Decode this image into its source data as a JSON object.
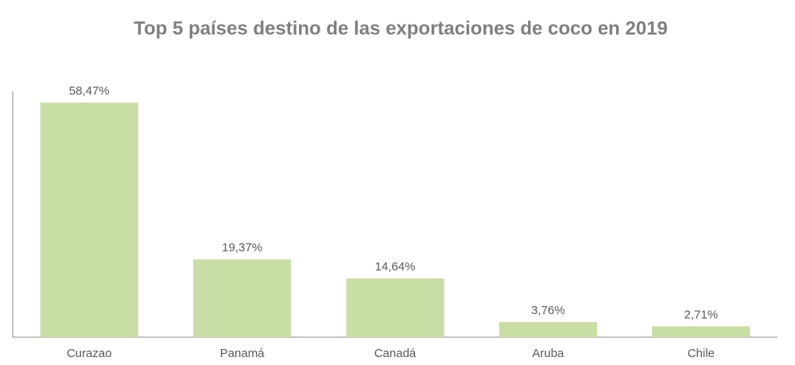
{
  "chart_data": {
    "type": "bar",
    "title": "Top 5 países destino de las exportaciones de coco en 2019",
    "categories": [
      "Curazao",
      "Panamá",
      "Canadá",
      "Aruba",
      "Chile"
    ],
    "values": [
      58.47,
      19.37,
      14.64,
      3.76,
      2.71
    ],
    "value_labels": [
      "58,47%",
      "19,37%",
      "14,64%",
      "3,76%",
      "2,71%"
    ],
    "color": "#c9dea5"
  }
}
